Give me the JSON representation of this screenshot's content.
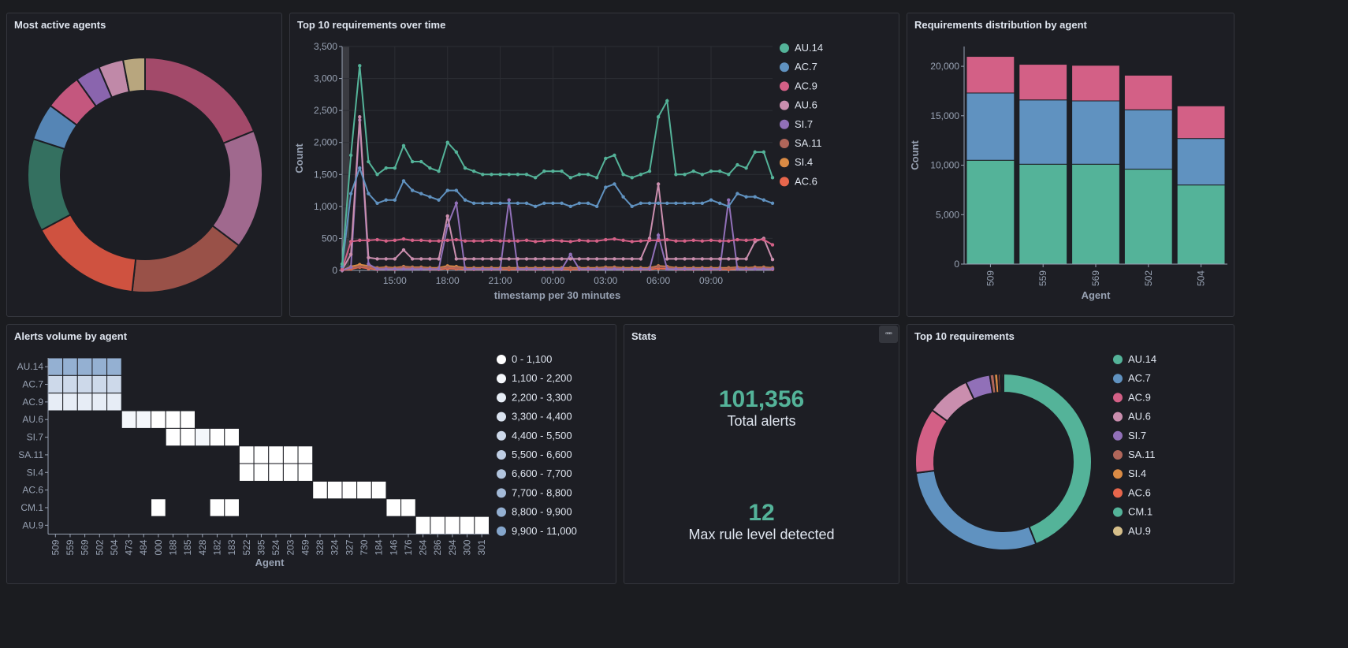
{
  "panels": {
    "most_active": {
      "title": "Most active agents"
    },
    "top10_time": {
      "title": "Top 10 requirements over time"
    },
    "req_dist": {
      "title": "Requirements distribution by agent"
    },
    "alerts_volume": {
      "title": "Alerts volume by agent"
    },
    "stats": {
      "title": "Stats",
      "menu_label": "▫▫▫"
    },
    "top10_req": {
      "title": "Top 10 requirements"
    }
  },
  "stats": {
    "total_alerts_value": "101,356",
    "total_alerts_label": "Total alerts",
    "max_rule_value": "12",
    "max_rule_label": "Max rule level detected"
  },
  "colors": {
    "palette": [
      "#54b399",
      "#6092c0",
      "#d36086",
      "#ca8eae",
      "#9170b8",
      "#b0665a",
      "#da8b45",
      "#e7664c",
      "#54b399",
      "#d6bf8a"
    ],
    "background": "#1d1e24",
    "accent": "#54b399"
  },
  "chart_data": [
    {
      "id": "most_active_agents",
      "type": "pie",
      "title": "Most active agents",
      "donut": true,
      "values": [
        18.2,
        15.8,
        15.9,
        14.9,
        12.3,
        4.9,
        4.9,
        3.3,
        3.3,
        2.9
      ],
      "colors": [
        "#a34a6a",
        "#a0698e",
        "#995148",
        "#cf5240",
        "#347060",
        "#5585b5",
        "#c4577e",
        "#8a65ae",
        "#c089a8",
        "#b8a67e"
      ]
    },
    {
      "id": "top10_over_time",
      "type": "line",
      "title": "Top 10 requirements over time",
      "xlabel": "timestamp per 30 minutes",
      "ylabel": "Count",
      "ylim": [
        0,
        3500
      ],
      "yticks": [
        0,
        500,
        1000,
        1500,
        2000,
        2500,
        3000,
        3500
      ],
      "ytick_labels": [
        "0",
        "500",
        "1,000",
        "1,500",
        "2,000",
        "2,500",
        "3,000",
        "3,500"
      ],
      "xtick_labels": [
        "15:00",
        "18:00",
        "21:00",
        "00:00",
        "03:00",
        "06:00",
        "09:00"
      ],
      "xtick_index": [
        6,
        12,
        18,
        24,
        30,
        36,
        42
      ],
      "legend_position": "right",
      "series": [
        {
          "name": "AU.14",
          "color": "#54b399",
          "values": [
            100,
            1800,
            3200,
            1700,
            1500,
            1600,
            1600,
            1950,
            1700,
            1700,
            1600,
            1550,
            2000,
            1850,
            1600,
            1550,
            1500,
            1500,
            1500,
            1500,
            1500,
            1500,
            1450,
            1550,
            1550,
            1550,
            1450,
            1500,
            1500,
            1450,
            1750,
            1800,
            1500,
            1450,
            1500,
            1550,
            2400,
            2650,
            1500,
            1500,
            1550,
            1500,
            1550,
            1550,
            1500,
            1650,
            1600,
            1850,
            1850,
            1450
          ]
        },
        {
          "name": "AC.7",
          "color": "#6092c0",
          "values": [
            60,
            1200,
            1600,
            1200,
            1050,
            1100,
            1100,
            1400,
            1250,
            1200,
            1150,
            1100,
            1250,
            1250,
            1100,
            1050,
            1050,
            1050,
            1050,
            1050,
            1050,
            1050,
            1000,
            1050,
            1050,
            1050,
            1000,
            1050,
            1050,
            1000,
            1300,
            1350,
            1150,
            1000,
            1050,
            1050,
            1050,
            1050,
            1050,
            1050,
            1050,
            1050,
            1100,
            1050,
            1000,
            1200,
            1150,
            1150,
            1100,
            1050
          ]
        },
        {
          "name": "AC.9",
          "color": "#d36086",
          "values": [
            20,
            450,
            470,
            470,
            480,
            460,
            470,
            490,
            470,
            470,
            460,
            460,
            470,
            480,
            460,
            460,
            460,
            470,
            460,
            460,
            460,
            470,
            450,
            460,
            470,
            460,
            450,
            470,
            460,
            460,
            480,
            490,
            470,
            450,
            460,
            470,
            470,
            480,
            460,
            460,
            470,
            460,
            470,
            460,
            460,
            480,
            470,
            480,
            480,
            400
          ]
        },
        {
          "name": "AU.6",
          "color": "#ca8eae",
          "values": [
            10,
            250,
            2400,
            200,
            180,
            180,
            180,
            320,
            180,
            180,
            180,
            180,
            850,
            180,
            180,
            180,
            180,
            180,
            180,
            180,
            180,
            180,
            180,
            180,
            180,
            180,
            180,
            180,
            180,
            180,
            180,
            180,
            180,
            180,
            180,
            500,
            1350,
            180,
            180,
            180,
            180,
            180,
            180,
            180,
            180,
            180,
            180,
            450,
            500,
            170
          ]
        },
        {
          "name": "SI.7",
          "color": "#9170b8",
          "values": [
            0,
            50,
            2350,
            100,
            20,
            20,
            20,
            20,
            20,
            20,
            20,
            20,
            700,
            1050,
            20,
            20,
            20,
            20,
            20,
            1100,
            20,
            20,
            20,
            20,
            20,
            20,
            250,
            20,
            20,
            20,
            20,
            20,
            20,
            20,
            20,
            20,
            550,
            20,
            20,
            20,
            20,
            20,
            20,
            20,
            1100,
            20,
            20,
            20,
            20,
            20
          ]
        },
        {
          "name": "SA.11",
          "color": "#b0665a",
          "values": [
            0,
            40,
            60,
            50,
            30,
            40,
            30,
            50,
            40,
            40,
            30,
            30,
            50,
            40,
            30,
            30,
            30,
            30,
            30,
            30,
            30,
            30,
            30,
            30,
            30,
            30,
            30,
            30,
            30,
            30,
            40,
            40,
            30,
            30,
            30,
            30,
            60,
            50,
            30,
            30,
            30,
            30,
            30,
            30,
            30,
            40,
            30,
            40,
            40,
            30
          ]
        },
        {
          "name": "SI.4",
          "color": "#da8b45",
          "values": [
            0,
            60,
            90,
            70,
            40,
            50,
            40,
            60,
            50,
            50,
            40,
            40,
            70,
            60,
            40,
            40,
            40,
            40,
            40,
            40,
            40,
            40,
            40,
            40,
            40,
            40,
            40,
            40,
            40,
            40,
            50,
            50,
            40,
            40,
            40,
            40,
            70,
            60,
            40,
            40,
            40,
            40,
            40,
            40,
            40,
            50,
            40,
            50,
            50,
            40
          ]
        },
        {
          "name": "AC.6",
          "color": "#e7664c",
          "values": [
            0,
            20,
            50,
            30,
            15,
            20,
            15,
            30,
            20,
            20,
            15,
            15,
            30,
            25,
            15,
            15,
            15,
            15,
            15,
            15,
            15,
            15,
            15,
            15,
            15,
            15,
            15,
            15,
            15,
            15,
            20,
            20,
            15,
            15,
            15,
            15,
            30,
            25,
            15,
            15,
            15,
            15,
            15,
            15,
            15,
            20,
            15,
            20,
            20,
            15
          ]
        }
      ]
    },
    {
      "id": "req_distribution",
      "type": "bar",
      "title": "Requirements distribution by agent",
      "stacked": true,
      "xlabel": "Agent",
      "ylabel": "Count",
      "categories": [
        "509",
        "559",
        "569",
        "502",
        "504"
      ],
      "ylim": [
        0,
        22000
      ],
      "yticks": [
        0,
        5000,
        10000,
        15000,
        20000
      ],
      "ytick_labels": [
        "0",
        "5,000",
        "10,000",
        "15,000",
        "20,000"
      ],
      "series": [
        {
          "color": "#54b399",
          "values": [
            10500,
            10100,
            10100,
            9600,
            8000
          ]
        },
        {
          "color": "#6092c0",
          "values": [
            6800,
            6500,
            6400,
            6000,
            4700
          ]
        },
        {
          "color": "#d36086",
          "values": [
            3700,
            3600,
            3600,
            3500,
            3300
          ]
        }
      ]
    },
    {
      "id": "alerts_volume",
      "type": "heatmap",
      "title": "Alerts volume by agent",
      "xlabel": "Agent",
      "x": [
        "509",
        "559",
        "569",
        "502",
        "504",
        "473",
        "484",
        "000",
        "188",
        "185",
        "428",
        "182",
        "183",
        "522",
        "395",
        "524",
        "203",
        "459",
        "328",
        "324",
        "327",
        "730",
        "184",
        "146",
        "176",
        "264",
        "286",
        "294",
        "300",
        "301"
      ],
      "y": [
        "AU.14",
        "AC.7",
        "AC.9",
        "AU.6",
        "SI.7",
        "SA.11",
        "SI.4",
        "AC.6",
        "CM.1",
        "AU.9"
      ],
      "cells": [
        [
          0,
          0,
          8
        ],
        [
          1,
          0,
          8
        ],
        [
          2,
          0,
          8
        ],
        [
          3,
          0,
          8
        ],
        [
          4,
          0,
          8
        ],
        [
          0,
          1,
          4
        ],
        [
          1,
          1,
          4
        ],
        [
          2,
          1,
          4
        ],
        [
          3,
          1,
          4
        ],
        [
          4,
          1,
          4
        ],
        [
          0,
          2,
          2
        ],
        [
          1,
          2,
          2
        ],
        [
          2,
          2,
          2
        ],
        [
          3,
          2,
          2
        ],
        [
          4,
          2,
          2
        ],
        [
          5,
          3,
          1
        ],
        [
          6,
          3,
          1
        ],
        [
          7,
          3,
          0
        ],
        [
          8,
          3,
          0
        ],
        [
          9,
          3,
          0
        ],
        [
          8,
          4,
          0
        ],
        [
          9,
          4,
          0
        ],
        [
          10,
          4,
          1
        ],
        [
          11,
          4,
          0
        ],
        [
          12,
          4,
          0
        ],
        [
          13,
          5,
          0
        ],
        [
          14,
          5,
          0
        ],
        [
          15,
          5,
          0
        ],
        [
          16,
          5,
          0
        ],
        [
          17,
          5,
          0
        ],
        [
          13,
          6,
          0
        ],
        [
          14,
          6,
          0
        ],
        [
          15,
          6,
          0
        ],
        [
          16,
          6,
          0
        ],
        [
          17,
          6,
          0
        ],
        [
          18,
          7,
          0
        ],
        [
          19,
          7,
          0
        ],
        [
          20,
          7,
          0
        ],
        [
          21,
          7,
          0
        ],
        [
          22,
          7,
          0
        ],
        [
          7,
          8,
          0
        ],
        [
          11,
          8,
          0
        ],
        [
          12,
          8,
          0
        ],
        [
          23,
          8,
          0
        ],
        [
          24,
          8,
          0
        ],
        [
          25,
          9,
          0
        ],
        [
          26,
          9,
          0
        ],
        [
          27,
          9,
          0
        ],
        [
          28,
          9,
          0
        ],
        [
          29,
          9,
          0
        ]
      ],
      "legend": [
        "0 - 1,100",
        "1,100 - 2,200",
        "2,200 - 3,300",
        "3,300 - 4,400",
        "4,400 - 5,500",
        "5,500 - 6,600",
        "6,600 - 7,700",
        "7,700 - 8,800",
        "8,800 - 9,900",
        "9,900 - 11,000"
      ],
      "legend_colors": [
        "#ffffff",
        "#f4f7fb",
        "#e7edf6",
        "#dae3f0",
        "#cdd9ea",
        "#bfcee4",
        "#b1c4de",
        "#a3bad8",
        "#94b0d2",
        "#85a6cc"
      ],
      "legend_position": "right"
    },
    {
      "id": "top10_requirements",
      "type": "pie",
      "title": "Top 10 requirements",
      "donut": true,
      "categories": [
        "AU.14",
        "AC.7",
        "AC.9",
        "AU.6",
        "SI.7",
        "SA.11",
        "SI.4",
        "AC.6",
        "CM.1",
        "AU.9"
      ],
      "values": [
        44.0,
        29.0,
        12.0,
        8.0,
        4.5,
        0.8,
        0.7,
        0.4,
        0.3,
        0.3
      ],
      "colors": [
        "#54b399",
        "#6092c0",
        "#d36086",
        "#ca8eae",
        "#9170b8",
        "#b0665a",
        "#da8b45",
        "#e7664c",
        "#54b399",
        "#d6bf8a"
      ],
      "legend_position": "right"
    }
  ]
}
